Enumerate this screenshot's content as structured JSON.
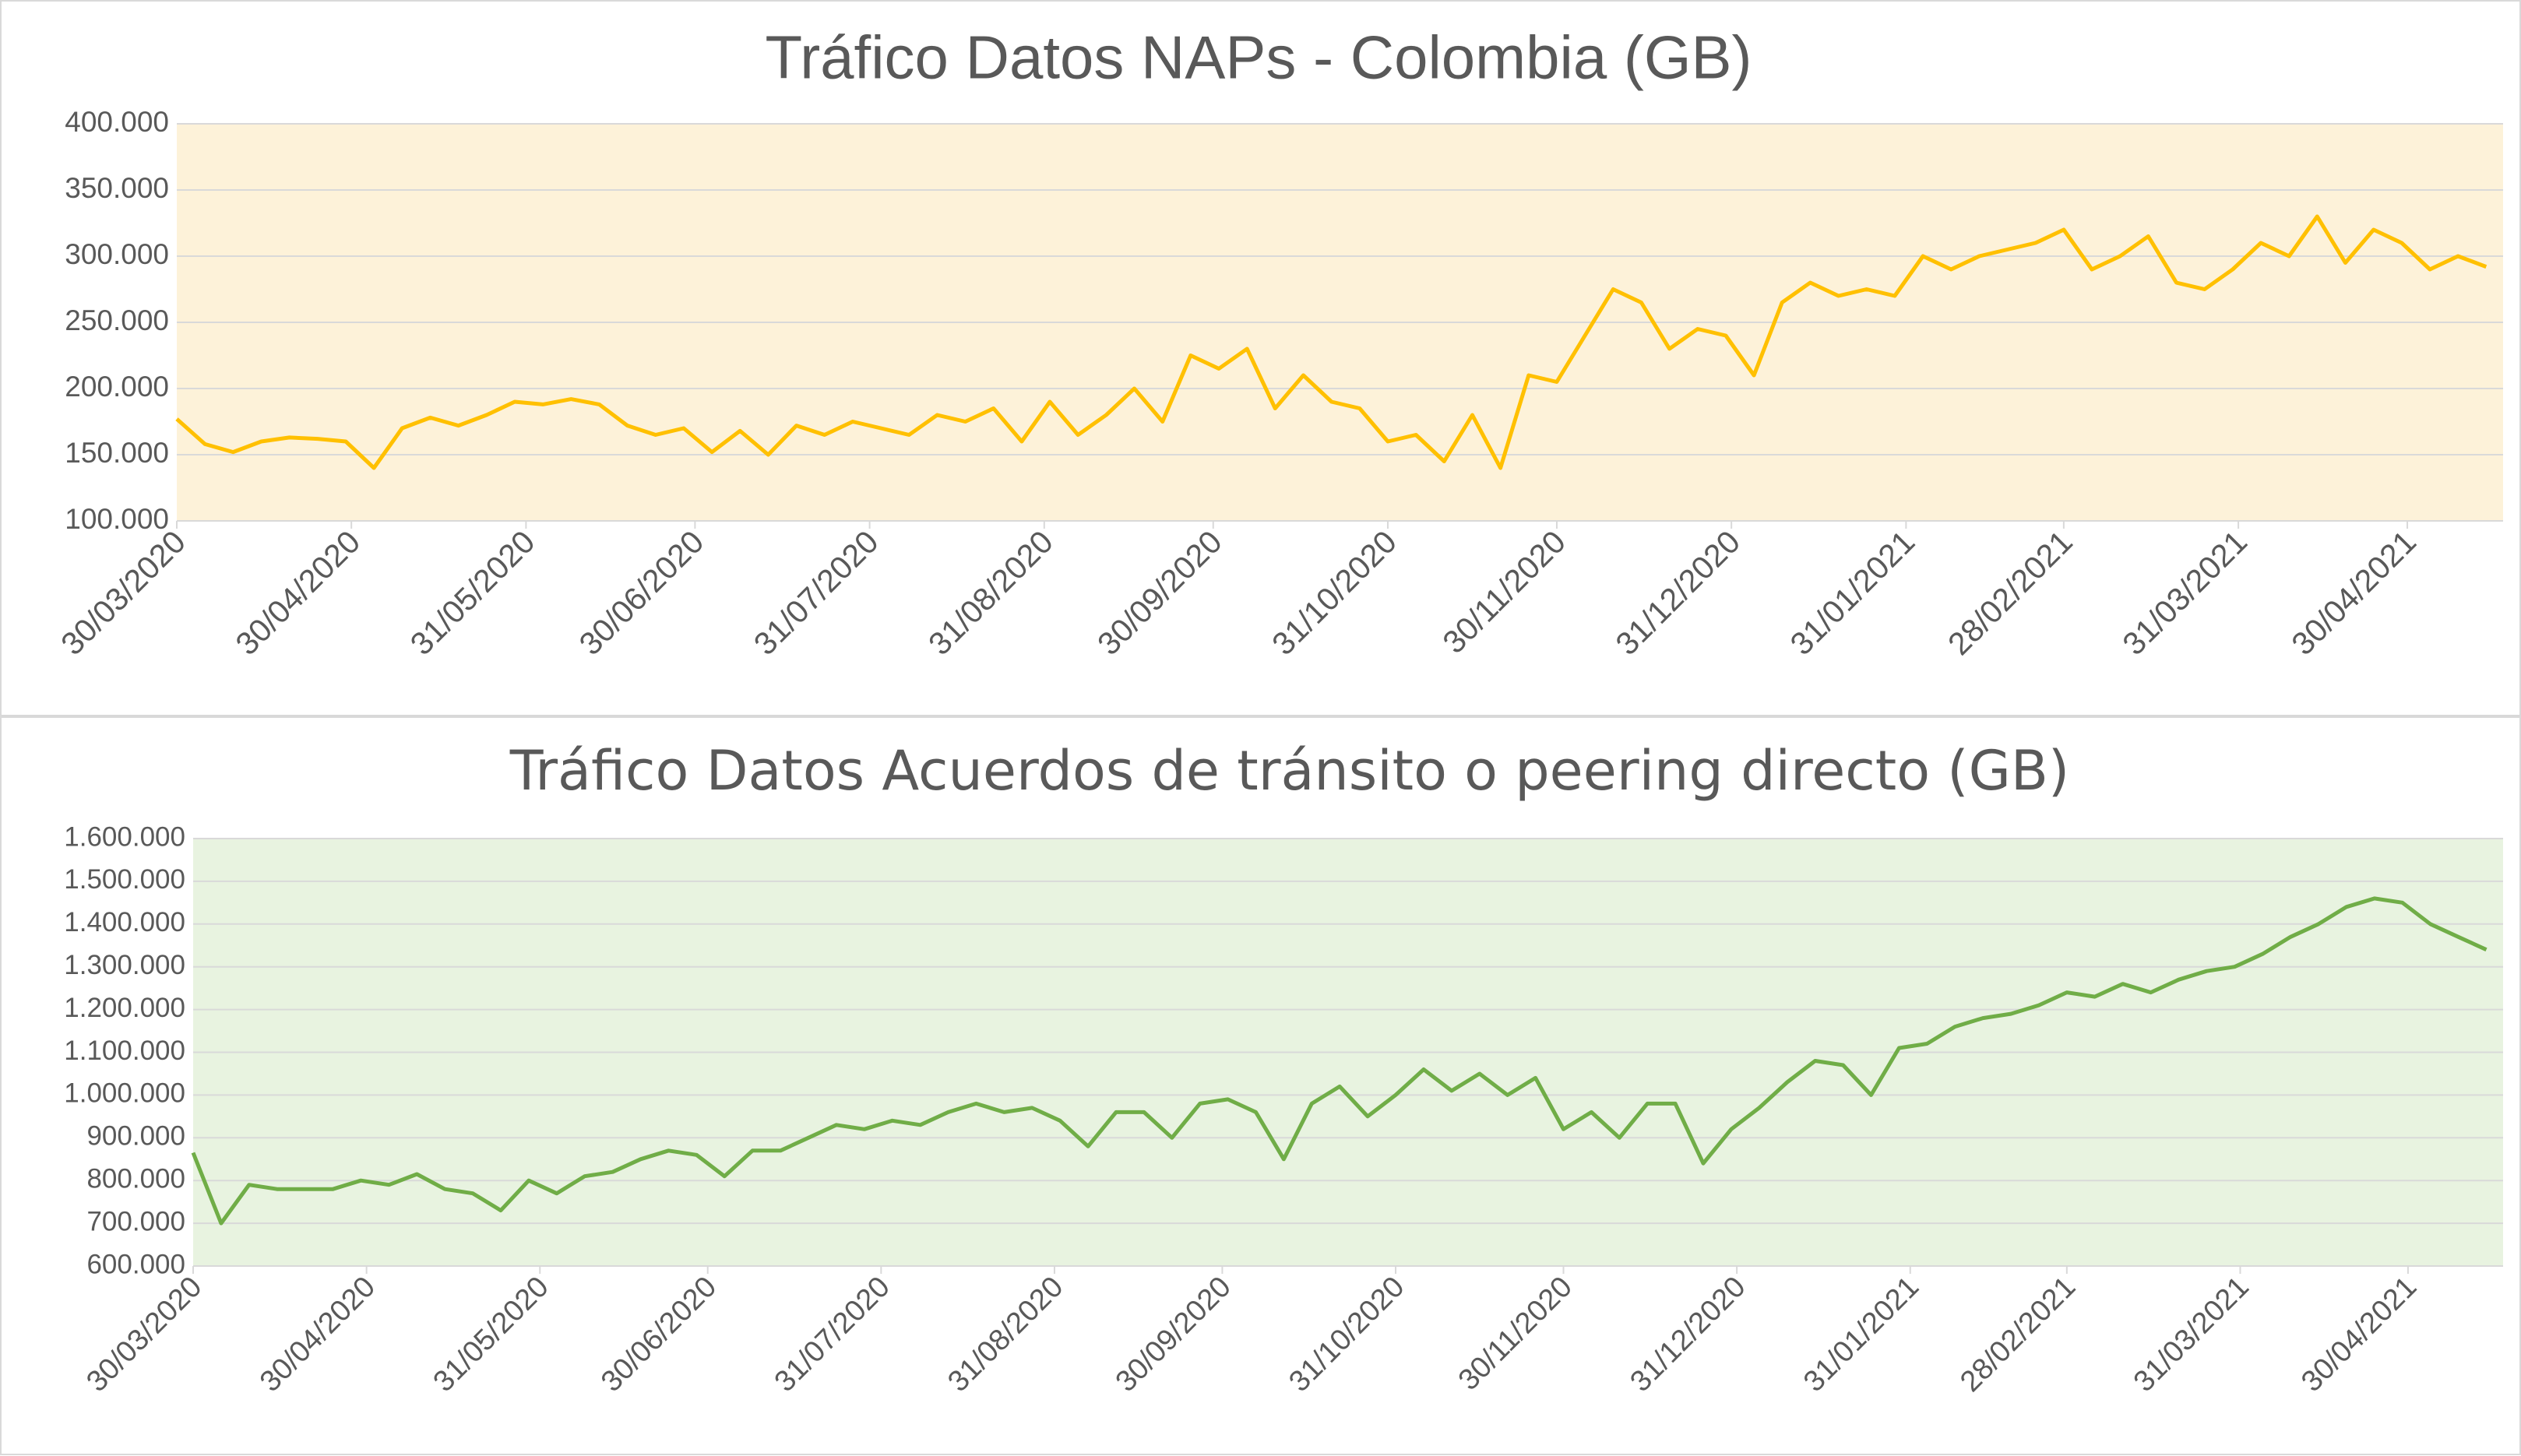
{
  "chart_data": [
    {
      "type": "line",
      "title": "Tráfico Datos   NAPs - Colombia (GB)",
      "color": "#ffc000",
      "plot_background": "#fdf2d9",
      "grid": true,
      "x": [
        "30/03/2020",
        "04/04/2020",
        "09/04/2020",
        "14/04/2020",
        "19/04/2020",
        "24/04/2020",
        "29/04/2020",
        "04/05/2020",
        "09/05/2020",
        "14/05/2020",
        "19/05/2020",
        "24/05/2020",
        "29/05/2020",
        "03/06/2020",
        "08/06/2020",
        "13/06/2020",
        "18/06/2020",
        "23/06/2020",
        "28/06/2020",
        "03/07/2020",
        "08/07/2020",
        "13/07/2020",
        "18/07/2020",
        "23/07/2020",
        "28/07/2020",
        "02/08/2020",
        "07/08/2020",
        "12/08/2020",
        "17/08/2020",
        "22/08/2020",
        "27/08/2020",
        "01/09/2020",
        "06/09/2020",
        "11/09/2020",
        "16/09/2020",
        "21/09/2020",
        "26/09/2020",
        "01/10/2020",
        "06/10/2020",
        "11/10/2020",
        "16/10/2020",
        "21/10/2020",
        "26/10/2020",
        "31/10/2020",
        "05/11/2020",
        "10/11/2020",
        "15/11/2020",
        "20/11/2020",
        "25/11/2020",
        "30/11/2020",
        "05/12/2020",
        "10/12/2020",
        "15/12/2020",
        "20/12/2020",
        "25/12/2020",
        "30/12/2020",
        "04/01/2021",
        "09/01/2021",
        "14/01/2021",
        "19/01/2021",
        "24/01/2021",
        "29/01/2021",
        "03/02/2021",
        "08/02/2021",
        "13/02/2021",
        "18/02/2021",
        "23/02/2021",
        "28/02/2021",
        "05/03/2021",
        "10/03/2021",
        "15/03/2021",
        "20/03/2021",
        "25/03/2021",
        "30/03/2021",
        "04/04/2021",
        "09/04/2021",
        "14/04/2021",
        "19/04/2021",
        "24/04/2021",
        "29/04/2021",
        "04/05/2021",
        "09/05/2021",
        "14/05/2021"
      ],
      "values": [
        177000,
        158000,
        152000,
        160000,
        163000,
        162000,
        160000,
        140000,
        170000,
        178000,
        172000,
        180000,
        190000,
        188000,
        192000,
        188000,
        172000,
        165000,
        170000,
        152000,
        168000,
        150000,
        172000,
        165000,
        175000,
        170000,
        165000,
        180000,
        175000,
        185000,
        160000,
        190000,
        165000,
        180000,
        200000,
        175000,
        225000,
        215000,
        230000,
        185000,
        210000,
        190000,
        185000,
        160000,
        165000,
        145000,
        180000,
        140000,
        210000,
        205000,
        240000,
        275000,
        265000,
        230000,
        245000,
        240000,
        210000,
        265000,
        280000,
        270000,
        275000,
        270000,
        300000,
        290000,
        300000,
        305000,
        310000,
        320000,
        290000,
        300000,
        315000,
        280000,
        275000,
        290000,
        310000,
        300000,
        330000,
        295000,
        320000,
        310000,
        290000,
        300000,
        292000
      ],
      "xlim": [
        "30/03/2020",
        "17/05/2021"
      ],
      "xticks": [
        "30/03/2020",
        "30/04/2020",
        "31/05/2020",
        "30/06/2020",
        "31/07/2020",
        "31/08/2020",
        "30/09/2020",
        "31/10/2020",
        "30/11/2020",
        "31/12/2020",
        "31/01/2021",
        "28/02/2021",
        "31/03/2021",
        "30/04/2021"
      ],
      "ylim": [
        100000,
        400000
      ],
      "yticks": [
        {
          "value": 100000,
          "label": "100.000"
        },
        {
          "value": 150000,
          "label": "150.000"
        },
        {
          "value": 200000,
          "label": "200.000"
        },
        {
          "value": 250000,
          "label": "250.000"
        },
        {
          "value": 300000,
          "label": "300.000"
        },
        {
          "value": 350000,
          "label": "350.000"
        },
        {
          "value": 400000,
          "label": "400.000"
        }
      ]
    },
    {
      "type": "line",
      "title": "Tráfico Datos  Acuerdos de tránsito o peering directo (GB)",
      "color": "#70ad47",
      "plot_background": "#e8f3e0",
      "grid": true,
      "x": [
        "30/03/2020",
        "04/04/2020",
        "09/04/2020",
        "14/04/2020",
        "19/04/2020",
        "24/04/2020",
        "29/04/2020",
        "04/05/2020",
        "09/05/2020",
        "14/05/2020",
        "19/05/2020",
        "24/05/2020",
        "29/05/2020",
        "03/06/2020",
        "08/06/2020",
        "13/06/2020",
        "18/06/2020",
        "23/06/2020",
        "28/06/2020",
        "03/07/2020",
        "08/07/2020",
        "13/07/2020",
        "18/07/2020",
        "23/07/2020",
        "28/07/2020",
        "02/08/2020",
        "07/08/2020",
        "12/08/2020",
        "17/08/2020",
        "22/08/2020",
        "27/08/2020",
        "01/09/2020",
        "06/09/2020",
        "11/09/2020",
        "16/09/2020",
        "21/09/2020",
        "26/09/2020",
        "01/10/2020",
        "06/10/2020",
        "11/10/2020",
        "16/10/2020",
        "21/10/2020",
        "26/10/2020",
        "31/10/2020",
        "05/11/2020",
        "10/11/2020",
        "15/11/2020",
        "20/11/2020",
        "25/11/2020",
        "30/11/2020",
        "05/12/2020",
        "10/12/2020",
        "15/12/2020",
        "20/12/2020",
        "25/12/2020",
        "30/12/2020",
        "04/01/2021",
        "09/01/2021",
        "14/01/2021",
        "19/01/2021",
        "24/01/2021",
        "29/01/2021",
        "03/02/2021",
        "08/02/2021",
        "13/02/2021",
        "18/02/2021",
        "23/02/2021",
        "28/02/2021",
        "05/03/2021",
        "10/03/2021",
        "15/03/2021",
        "20/03/2021",
        "25/03/2021",
        "30/03/2021",
        "04/04/2021",
        "09/04/2021",
        "14/04/2021",
        "19/04/2021",
        "24/04/2021",
        "29/04/2021",
        "04/05/2021",
        "09/05/2021",
        "14/05/2021"
      ],
      "values": [
        865000,
        700000,
        790000,
        780000,
        780000,
        780000,
        800000,
        790000,
        815000,
        780000,
        770000,
        730000,
        800000,
        770000,
        810000,
        820000,
        850000,
        870000,
        860000,
        810000,
        870000,
        870000,
        900000,
        930000,
        920000,
        940000,
        930000,
        960000,
        980000,
        960000,
        970000,
        940000,
        880000,
        960000,
        960000,
        900000,
        980000,
        990000,
        960000,
        850000,
        980000,
        1020000,
        950000,
        1000000,
        1060000,
        1010000,
        1050000,
        1000000,
        1040000,
        920000,
        960000,
        900000,
        980000,
        980000,
        840000,
        920000,
        970000,
        1030000,
        1080000,
        1070000,
        1000000,
        1110000,
        1120000,
        1160000,
        1180000,
        1190000,
        1210000,
        1240000,
        1230000,
        1260000,
        1240000,
        1270000,
        1290000,
        1300000,
        1330000,
        1370000,
        1400000,
        1440000,
        1460000,
        1450000,
        1400000,
        1370000,
        1340000
      ],
      "xlim": [
        "30/03/2020",
        "17/05/2021"
      ],
      "xticks": [
        "30/03/2020",
        "30/04/2020",
        "31/05/2020",
        "30/06/2020",
        "31/07/2020",
        "31/08/2020",
        "30/09/2020",
        "31/10/2020",
        "30/11/2020",
        "31/12/2020",
        "31/01/2021",
        "28/02/2021",
        "31/03/2021",
        "30/04/2021"
      ],
      "ylim": [
        600000,
        1600000
      ],
      "yticks": [
        {
          "value": 600000,
          "label": "600.000"
        },
        {
          "value": 700000,
          "label": "700.000"
        },
        {
          "value": 800000,
          "label": "800.000"
        },
        {
          "value": 900000,
          "label": "900.000"
        },
        {
          "value": 1000000,
          "label": "1.000.000"
        },
        {
          "value": 1100000,
          "label": "1.100.000"
        },
        {
          "value": 1200000,
          "label": "1.200.000"
        },
        {
          "value": 1300000,
          "label": "1.300.000"
        },
        {
          "value": 1400000,
          "label": "1.400.000"
        },
        {
          "value": 1500000,
          "label": "1.500.000"
        },
        {
          "value": 1600000,
          "label": "1.600.000"
        }
      ]
    }
  ]
}
